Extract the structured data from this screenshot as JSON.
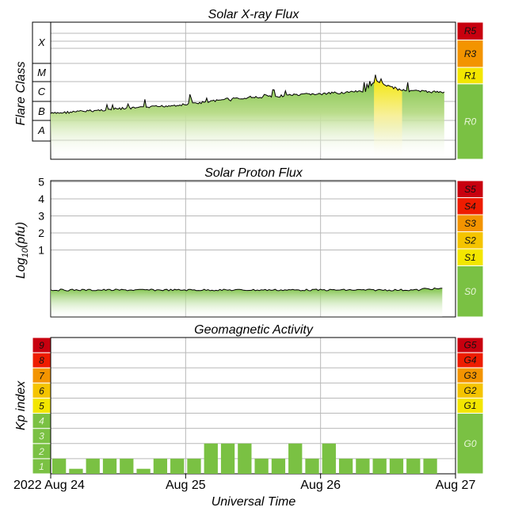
{
  "colors": {
    "green": "#7ac143",
    "green_light": "#b9dc8a",
    "yellow": "#f3e600",
    "amber": "#f5c400",
    "orange": "#f39400",
    "red_orange": "#ee4a00",
    "red": "#ee1c00",
    "dark_red": "#c8000f",
    "grid": "#b9b9b9",
    "line": "#000000"
  },
  "x_axis": {
    "ticks": [
      {
        "label": "2022 Aug 24"
      },
      {
        "label": "Aug 25"
      },
      {
        "label": "Aug 26"
      },
      {
        "label": "Aug 27"
      }
    ],
    "label": "Universal Time"
  },
  "chart_data": [
    {
      "type": "area",
      "title": "Solar X-ray Flux",
      "ylabel": "Flare Class",
      "y_scale": "log",
      "y_class_labels": [
        "X",
        "M",
        "C",
        "B",
        "A"
      ],
      "scale_labels": [
        "R5",
        "R3",
        "R1",
        "R0"
      ],
      "scale_colors": [
        "dark_red",
        "orange",
        "yellow",
        "green"
      ],
      "x_range": [
        "2022-08-24T00:00",
        "2022-08-27T00:00"
      ],
      "series": [
        {
          "time_hours": [
            0,
            4,
            8,
            12,
            16,
            20,
            22,
            24,
            26,
            28,
            30,
            31,
            32,
            33,
            34,
            36,
            37,
            38,
            40,
            42,
            44,
            46,
            48,
            50,
            52,
            54,
            56,
            58,
            60,
            62,
            64,
            66,
            68,
            70
          ],
          "flux_class": [
            "B2.3",
            "B2.8",
            "B3.3",
            "B4.1",
            "B4.6",
            "B5.6",
            "B6.3",
            "B6.8",
            "B8.2",
            "B9.5",
            "C1.1",
            "C1.5",
            "C1.2",
            "C1.6",
            "C1.3",
            "C1.8",
            "C1.4",
            "C2.0",
            "C1.6",
            "C2.2",
            "C2.0",
            "C2.4",
            "C2.3",
            "C2.6",
            "C2.8",
            "C3.0",
            "C3.4",
            "M1.2",
            "C6.0",
            "C4.0",
            "C3.5",
            "C3.2",
            "C3.0",
            "C3.0"
          ]
        }
      ]
    },
    {
      "type": "area",
      "title": "Solar Proton Flux",
      "ylabel": "Log10(pfu)",
      "y_ticks": [
        "1",
        "2",
        "3",
        "4",
        "5"
      ],
      "scale_labels": [
        "S5",
        "S4",
        "S3",
        "S2",
        "S1",
        "S0"
      ],
      "scale_colors": [
        "dark_red",
        "red",
        "orange",
        "amber",
        "yellow",
        "green"
      ],
      "series": [
        {
          "time_hours": [
            0,
            12,
            24,
            36,
            48,
            60,
            70
          ],
          "log_pfu": [
            -0.2,
            -0.2,
            -0.2,
            -0.2,
            -0.2,
            -0.2,
            -0.15
          ]
        }
      ]
    },
    {
      "type": "bar",
      "title": "Geomagnetic Activity",
      "ylabel": "Kp index",
      "y_ticks": [
        "1",
        "2",
        "3",
        "4",
        "5",
        "6",
        "7",
        "8",
        "9"
      ],
      "scale_labels": [
        "G5",
        "G4",
        "G3",
        "G2",
        "G1",
        "G0"
      ],
      "scale_colors": [
        "dark_red",
        "red",
        "orange",
        "amber",
        "yellow",
        "green"
      ],
      "bar_interval_hours": 3,
      "values": [
        1,
        0.33,
        1,
        1,
        1,
        0.33,
        1,
        1,
        1,
        2,
        2,
        2,
        1,
        1,
        2,
        1,
        2,
        1,
        1,
        1,
        1,
        1,
        1,
        0
      ]
    }
  ]
}
